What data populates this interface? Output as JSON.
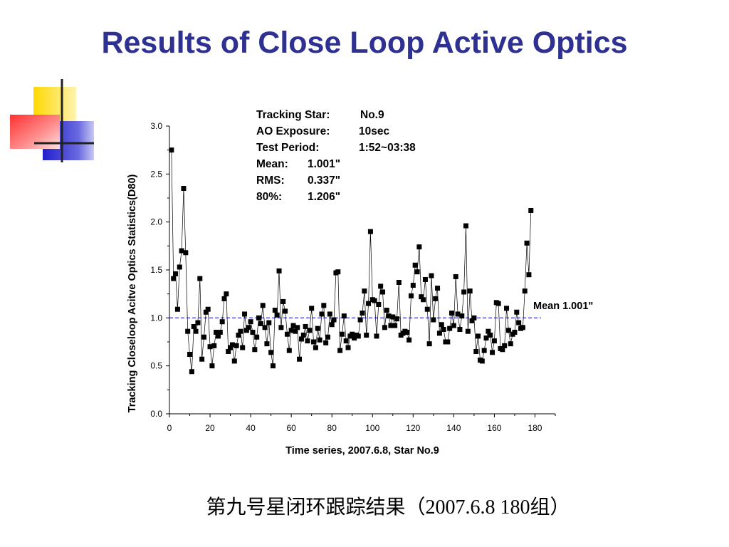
{
  "slide": {
    "title": "Results of Close Loop Active Optics",
    "caption": "第九号星闭环跟踪结果（2007.6.8 180组）"
  },
  "chart_data": {
    "type": "scatter",
    "xlabel": "Time series, 2007.6.8, Star No.9",
    "ylabel": "Tracking Closeloop Acitve Optics Statistics(D80)",
    "xlim": [
      0,
      190
    ],
    "ylim": [
      0,
      3.0
    ],
    "xticks": [
      "0",
      "20",
      "40",
      "60",
      "80",
      "100",
      "120",
      "140",
      "160",
      "180"
    ],
    "yticks": [
      "0.0",
      "0.5",
      "1.0",
      "1.5",
      "2.0",
      "2.5",
      "3.0"
    ],
    "mean_label": "Mean 1.001\"",
    "mean_value": 1.001,
    "info": [
      {
        "key": "Tracking Star:",
        "value": "No.9"
      },
      {
        "key": "AO Exposure:",
        "value": "10sec"
      },
      {
        "key": "Test Period:",
        "value": "1:52~03:38"
      },
      {
        "key": "Mean:",
        "value": "1.001\""
      },
      {
        "key": "RMS:",
        "value": "0.337\""
      },
      {
        "key": "80%:",
        "value": "1.206\""
      }
    ],
    "colors": {
      "markers": "#000000",
      "mean_line": "#0000cc",
      "title": "#2e3192"
    },
    "series": [
      {
        "values": [
          2.75,
          1.41,
          1.46,
          1.09,
          1.53,
          1.7,
          2.35,
          1.68,
          0.86,
          0.62,
          0.44,
          0.91,
          0.86,
          0.95,
          1.41,
          0.57,
          0.8,
          1.06,
          1.09,
          0.7,
          0.5,
          0.71,
          0.85,
          0.81,
          0.85,
          0.96,
          1.2,
          1.25,
          0.65,
          0.69,
          0.72,
          0.55,
          0.71,
          0.82,
          0.86,
          0.69,
          1.04,
          0.87,
          0.9,
          0.96,
          0.85,
          0.67,
          0.8,
          1.0,
          0.94,
          1.13,
          0.9,
          0.73,
          0.95,
          0.64,
          0.5,
          1.08,
          1.03,
          1.49,
          0.9,
          1.17,
          1.07,
          0.83,
          0.66,
          0.87,
          0.92,
          0.86,
          0.9,
          0.57,
          0.78,
          0.82,
          0.91,
          0.76,
          0.87,
          1.1,
          0.75,
          0.69,
          0.89,
          0.77,
          1.04,
          1.13,
          0.74,
          0.8,
          1.04,
          0.93,
          0.98,
          1.47,
          1.48,
          0.66,
          0.83,
          1.02,
          0.76,
          0.69,
          0.81,
          0.83,
          0.79,
          0.82,
          0.81,
          0.98,
          1.05,
          1.28,
          0.82,
          1.15,
          1.9,
          1.19,
          1.18,
          0.81,
          1.14,
          1.33,
          1.27,
          0.9,
          1.08,
          1.02,
          0.92,
          1.01,
          0.92,
          0.99,
          1.37,
          0.82,
          0.84,
          0.86,
          0.85,
          0.77,
          1.23,
          1.34,
          1.55,
          1.48,
          1.74,
          1.22,
          1.19,
          1.4,
          1.09,
          0.73,
          1.44,
          0.98,
          1.2,
          1.31,
          0.84,
          0.93,
          0.88,
          0.75,
          0.75,
          0.89,
          1.05,
          0.92,
          1.43,
          1.04,
          0.88,
          1.02,
          1.27,
          1.96,
          0.86,
          1.28,
          0.97,
          1.0,
          0.65,
          0.81,
          0.56,
          0.55,
          0.66,
          0.79,
          0.86,
          0.82,
          0.64,
          0.76,
          1.16,
          1.15,
          0.68,
          0.67,
          0.71,
          1.1,
          0.87,
          0.73,
          0.83,
          0.85,
          1.06,
          0.95,
          0.89,
          0.9,
          1.28,
          1.78,
          1.45,
          2.12
        ]
      }
    ]
  }
}
